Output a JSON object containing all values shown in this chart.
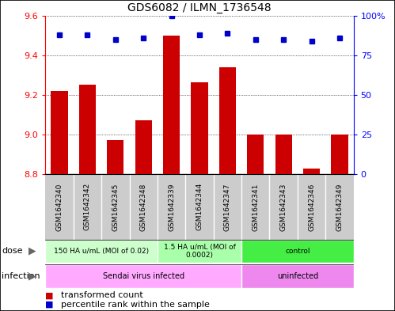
{
  "title": "GDS6082 / ILMN_1736548",
  "samples": [
    "GSM1642340",
    "GSM1642342",
    "GSM1642345",
    "GSM1642348",
    "GSM1642339",
    "GSM1642344",
    "GSM1642347",
    "GSM1642341",
    "GSM1642343",
    "GSM1642346",
    "GSM1642349"
  ],
  "bar_values": [
    9.22,
    9.25,
    8.97,
    9.07,
    9.5,
    9.265,
    9.34,
    9.0,
    9.0,
    8.83,
    9.0
  ],
  "dot_values": [
    88,
    88,
    85,
    86,
    100,
    88,
    89,
    85,
    85,
    84,
    86
  ],
  "ylim": [
    8.8,
    9.6
  ],
  "y2lim": [
    0,
    100
  ],
  "yticks": [
    8.8,
    9.0,
    9.2,
    9.4,
    9.6
  ],
  "y2ticks": [
    0,
    25,
    50,
    75,
    100
  ],
  "bar_color": "#cc0000",
  "dot_color": "#0000cc",
  "dose_groups": [
    {
      "label": "150 HA u/mL (MOI of 0.02)",
      "start": 0,
      "end": 4,
      "color": "#ccffcc"
    },
    {
      "label": "1.5 HA u/mL (MOI of\n0.0002)",
      "start": 4,
      "end": 7,
      "color": "#aaffaa"
    },
    {
      "label": "control",
      "start": 7,
      "end": 11,
      "color": "#44ee44"
    }
  ],
  "infection_groups": [
    {
      "label": "Sendai virus infected",
      "start": 0,
      "end": 7,
      "color": "#ffaaff"
    },
    {
      "label": "uninfected",
      "start": 7,
      "end": 11,
      "color": "#ee88ee"
    }
  ],
  "legend_items": [
    {
      "label": "transformed count",
      "color": "#cc0000"
    },
    {
      "label": "percentile rank within the sample",
      "color": "#0000cc"
    }
  ],
  "sample_bg": "#cccccc",
  "border_color": "#000000"
}
